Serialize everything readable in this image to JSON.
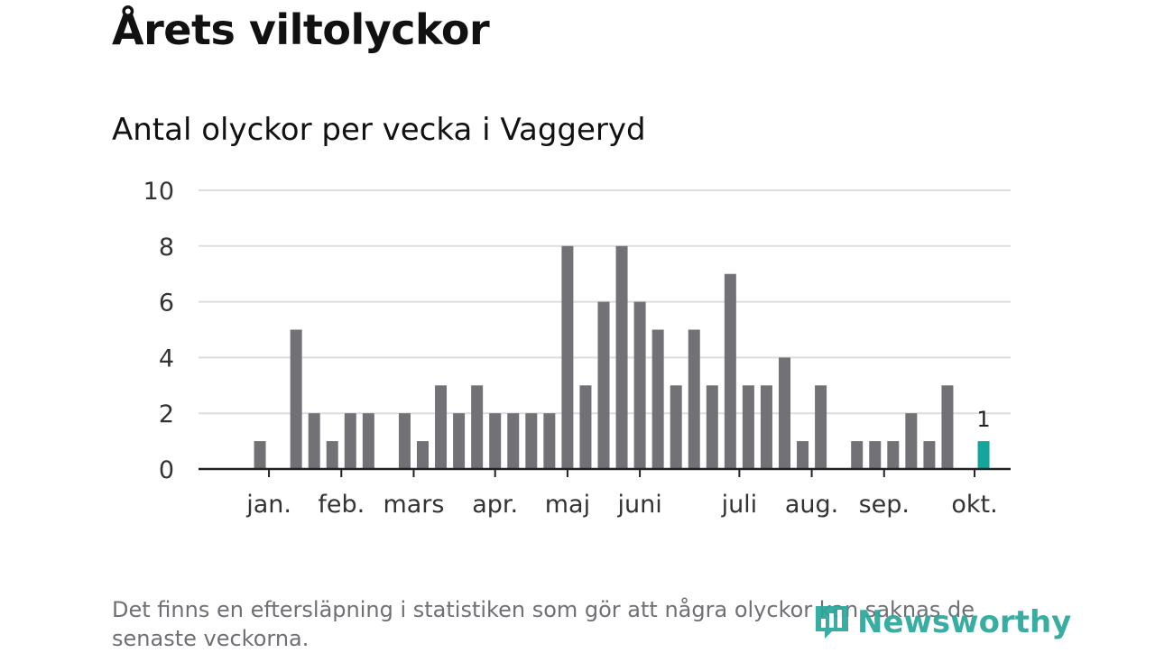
{
  "title": "Årets viltolyckor",
  "subtitle": "Antal olyckor per vecka i Vaggeryd",
  "footnote": "Det finns en eftersläpning i statistiken som gör att några olyckor kan saknas de senaste veckorna.",
  "brand": {
    "name": "Newsworthy",
    "icon": "newsworthy-logo-icon",
    "color": "#2aa79b"
  },
  "colors": {
    "bar": "#727176",
    "highlight": "#16a59a",
    "grid": "#dddddd",
    "axis": "#222222",
    "text": "#333333"
  },
  "chart_data": {
    "type": "bar",
    "title": "Antal olyckor per vecka i Vaggeryd",
    "xlabel": "",
    "ylabel": "",
    "x": [
      1,
      2,
      3,
      4,
      5,
      6,
      7,
      8,
      9,
      10,
      11,
      12,
      13,
      14,
      15,
      16,
      17,
      18,
      19,
      20,
      21,
      22,
      23,
      24,
      25,
      26,
      27,
      28,
      29,
      30,
      31,
      32,
      33,
      34,
      35,
      36,
      37,
      38,
      39,
      40,
      41,
      42,
      43,
      44
    ],
    "values": [
      0,
      1,
      0,
      5,
      2,
      1,
      2,
      2,
      0,
      2,
      1,
      3,
      2,
      3,
      2,
      2,
      2,
      2,
      8,
      3,
      6,
      8,
      6,
      5,
      3,
      5,
      3,
      7,
      3,
      3,
      4,
      1,
      3,
      0,
      1,
      1,
      1,
      2,
      1,
      3,
      0,
      1,
      0,
      0
    ],
    "highlight": {
      "x": 42,
      "value": 1,
      "label": "1"
    },
    "ylim": [
      0,
      10
    ],
    "yticks": [
      0,
      2,
      4,
      6,
      8,
      10
    ],
    "grid": true,
    "month_ticks": [
      {
        "label": "jan.",
        "at": 2.5
      },
      {
        "label": "feb.",
        "at": 6.5
      },
      {
        "label": "mars",
        "at": 10.5
      },
      {
        "label": "apr.",
        "at": 15
      },
      {
        "label": "maj",
        "at": 19
      },
      {
        "label": "juni",
        "at": 23
      },
      {
        "label": "juli",
        "at": 28.5
      },
      {
        "label": "aug.",
        "at": 32.5
      },
      {
        "label": "sep.",
        "at": 36.5
      },
      {
        "label": "okt.",
        "at": 41.5
      }
    ]
  }
}
